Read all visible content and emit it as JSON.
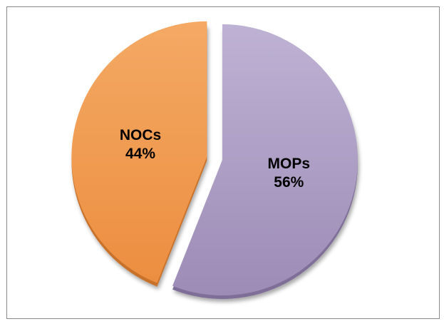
{
  "chart_data": {
    "type": "pie",
    "title": "",
    "slices": [
      {
        "label": "MOPs",
        "value": 56,
        "display": "56%",
        "color": "#A898C0",
        "exploded": false
      },
      {
        "label": "NOCs",
        "value": 44,
        "display": "44%",
        "color": "#F09A50",
        "exploded": true
      }
    ],
    "legend": "none"
  }
}
